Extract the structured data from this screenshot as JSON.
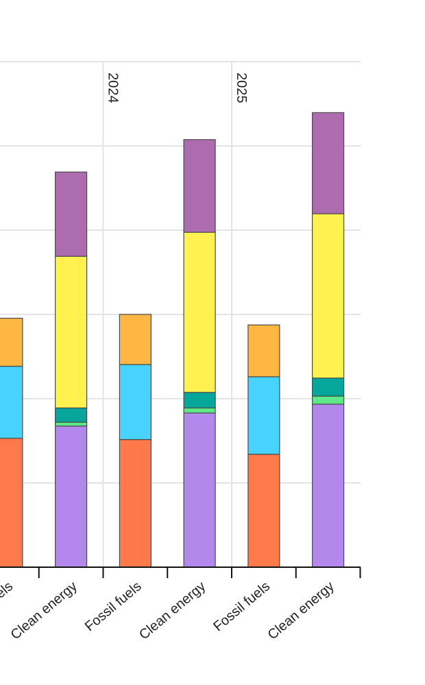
{
  "chart_data": {
    "type": "bar",
    "stacked": true,
    "ylim": [
      0,
      1200
    ],
    "grid": true,
    "groups": [
      {
        "year": "",
        "bars": [
          {
            "label": "Fossil fuels",
            "segments": [
              {
                "color": "#ff7a4a",
                "value": 306
              },
              {
                "color": "#48d3ff",
                "value": 171
              },
              {
                "color": "#ffb744",
                "value": 114
              }
            ]
          },
          {
            "label": "Clean energy",
            "segments": [
              {
                "color": "#b288ec",
                "value": 335
              },
              {
                "color": "#5ee887",
                "value": 9
              },
              {
                "color": "#07a69a",
                "value": 34
              },
              {
                "color": "#fff250",
                "value": 360
              },
              {
                "color": "#ae6cb0",
                "value": 200
              }
            ]
          }
        ]
      },
      {
        "year": "2024",
        "bars": [
          {
            "label": "Fossil fuels",
            "segments": [
              {
                "color": "#ff7a4a",
                "value": 303
              },
              {
                "color": "#48d3ff",
                "value": 178
              },
              {
                "color": "#ffb744",
                "value": 119
              }
            ]
          },
          {
            "label": "Clean energy",
            "segments": [
              {
                "color": "#b288ec",
                "value": 366
              },
              {
                "color": "#5ee887",
                "value": 12
              },
              {
                "color": "#07a69a",
                "value": 37
              },
              {
                "color": "#fff250",
                "value": 380
              },
              {
                "color": "#ae6cb0",
                "value": 220
              }
            ]
          }
        ]
      },
      {
        "year": "2025",
        "bars": [
          {
            "label": "Fossil fuels",
            "segments": [
              {
                "color": "#ff7a4a",
                "value": 268
              },
              {
                "color": "#48d3ff",
                "value": 184
              },
              {
                "color": "#ffb744",
                "value": 123
              }
            ]
          },
          {
            "label": "Clean energy",
            "segments": [
              {
                "color": "#b288ec",
                "value": 387
              },
              {
                "color": "#5ee887",
                "value": 19
              },
              {
                "color": "#07a69a",
                "value": 43
              },
              {
                "color": "#fff250",
                "value": 390
              },
              {
                "color": "#ae6cb0",
                "value": 240
              }
            ]
          }
        ]
      }
    ]
  }
}
